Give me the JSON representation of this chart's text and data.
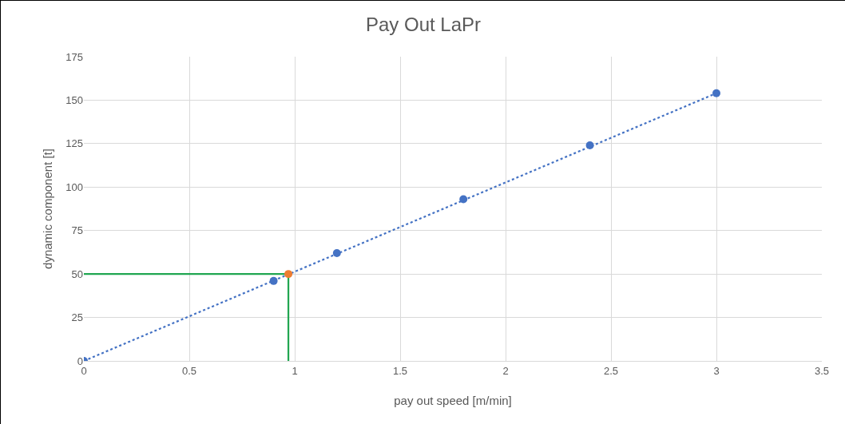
{
  "chart_data": {
    "type": "scatter",
    "title": "Pay Out LaPr",
    "xlabel": "pay out speed [m/min]",
    "ylabel": "dynamic component [t]",
    "xlim": [
      0,
      3.5
    ],
    "xticks": [
      0,
      0.5,
      1,
      1.5,
      2,
      2.5,
      3,
      3.5
    ],
    "ylim": [
      0,
      175
    ],
    "yticks": [
      0,
      25,
      50,
      75,
      100,
      125,
      150,
      175
    ],
    "grid": true,
    "marker": "circle",
    "series": [
      {
        "type": "line",
        "marker": "none",
        "line_style": "dotted",
        "color": "#4472c4",
        "x": [
          0,
          3
        ],
        "values": [
          0,
          154
        ]
      },
      {
        "type": "line",
        "marker": "none",
        "line_style": "solid",
        "color": "#21a651",
        "x": [
          0,
          0.97,
          0.97
        ],
        "values": [
          50,
          50,
          0
        ]
      },
      {
        "color": "#4472c4",
        "x": [
          0,
          0.9,
          1.2,
          1.8,
          2.4,
          3
        ],
        "values": [
          0,
          46,
          62,
          93,
          124,
          154
        ]
      },
      {
        "color": "#ed7d31",
        "x": [
          0.97
        ],
        "values": [
          50
        ]
      }
    ]
  }
}
